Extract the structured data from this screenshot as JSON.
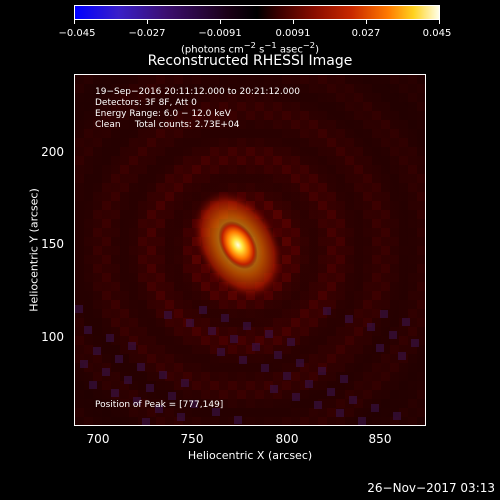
{
  "colorbar": {
    "ticks": [
      "−0.045",
      "−0.027",
      "−0.0091",
      "0.0091",
      "0.027",
      "0.045"
    ],
    "units_html": "(photons cm<sup>−2</sup> s<sup>−1</sup> asec<sup>−2</sup>)"
  },
  "title": "Reconstructed RHESSI Image",
  "info": {
    "line1": "19−Sep−2016 20:11:12.000 to 20:21:12.000",
    "line2": "Detectors: 3F 8F, Att 0",
    "line3": "Energy Range: 6.0 − 12.0 keV",
    "line4": "Clean     Total counts: 2.73E+04"
  },
  "peak": "Position of Peak = [777,149]",
  "axes": {
    "x_label": "Heliocentric X (arcsec)",
    "y_label": "Heliocentric Y (arcsec)",
    "x_ticks": [
      "700",
      "750",
      "800",
      "850"
    ],
    "y_ticks": [
      "200",
      "150",
      "100"
    ]
  },
  "timestamp": "26−Nov−2017 03:13"
}
